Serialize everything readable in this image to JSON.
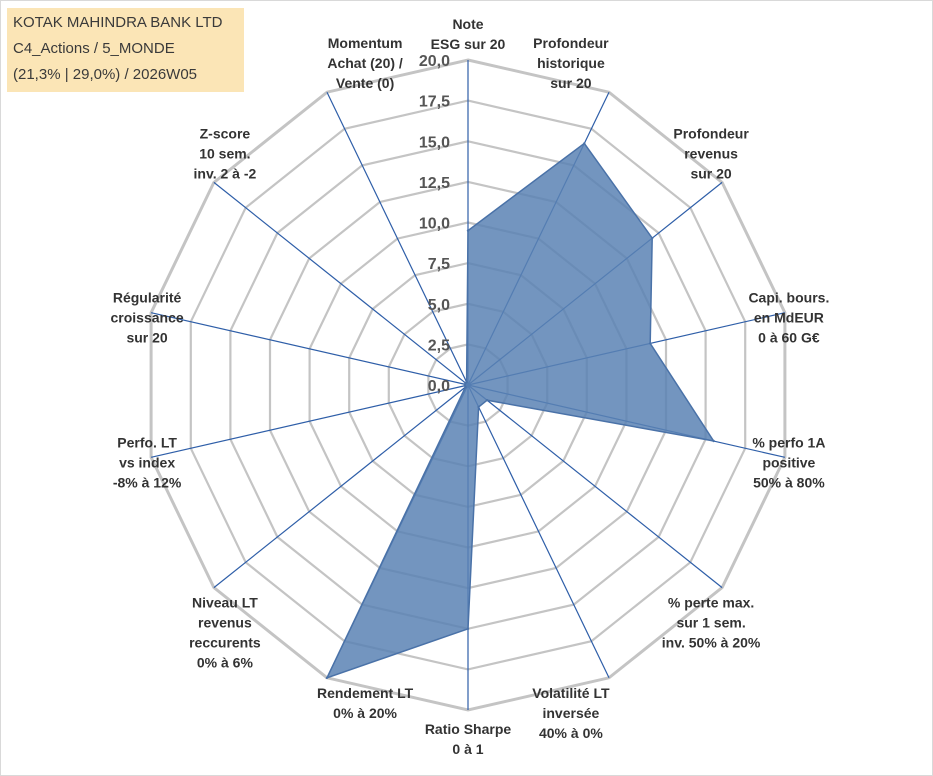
{
  "title": {
    "line1": "KOTAK MAHINDRA BANK LTD",
    "line2": "C4_Actions / 5_MONDE",
    "line3": "(21,3% | 29,0%) / 2026W05"
  },
  "colors": {
    "title_bg": "#fbe5b6",
    "grid": "#c4c4c4",
    "spoke": "#2e5ea8",
    "fill": "#5b82b4",
    "outline": "#4a72a8"
  },
  "chart_data": {
    "type": "radar",
    "title": "KOTAK MAHINDRA BANK LTD",
    "rmin": 0,
    "rmax": 20,
    "step": 2.5,
    "tick_labels": [
      "0,0",
      "2,5",
      "5,0",
      "7,5",
      "10,0",
      "12,5",
      "15,0",
      "17,5",
      "20,0"
    ],
    "axes": [
      [
        "Note",
        "ESG sur 20"
      ],
      [
        "Profondeur",
        "historique",
        "sur 20"
      ],
      [
        "Profondeur",
        "revenus",
        "sur 20"
      ],
      [
        "Capi. bours.",
        "en MdEUR",
        "0 à 60 G€"
      ],
      [
        "% perfo 1A",
        "positive",
        "50% à 80%"
      ],
      [
        "% perte max.",
        "sur 1 sem.",
        "inv. 50% à 20%"
      ],
      [
        "Volatilité LT",
        "inversée",
        "40% à 0%"
      ],
      [
        "Ratio Sharpe",
        "0 à 1"
      ],
      [
        "Rendement LT",
        "0% à 20%"
      ],
      [
        "Niveau LT",
        "revenus",
        "reccurents",
        "0% à 6%"
      ],
      [
        "Perfo. LT",
        "vs index",
        "-8% à 12%"
      ],
      [
        "Régularité",
        "croissance",
        "sur 20"
      ],
      [
        "Z-score",
        "10 sem.",
        "inv. 2 à -2"
      ],
      [
        "Momentum",
        "Achat (20) /",
        "Vente (0)"
      ]
    ],
    "series": [
      {
        "values": [
          9.5,
          16.5,
          14.5,
          11.5,
          15.5,
          1.5,
          1.5,
          15,
          20,
          0.2,
          0.2,
          0.2,
          0.2,
          0.2
        ]
      }
    ],
    "grid": true
  }
}
